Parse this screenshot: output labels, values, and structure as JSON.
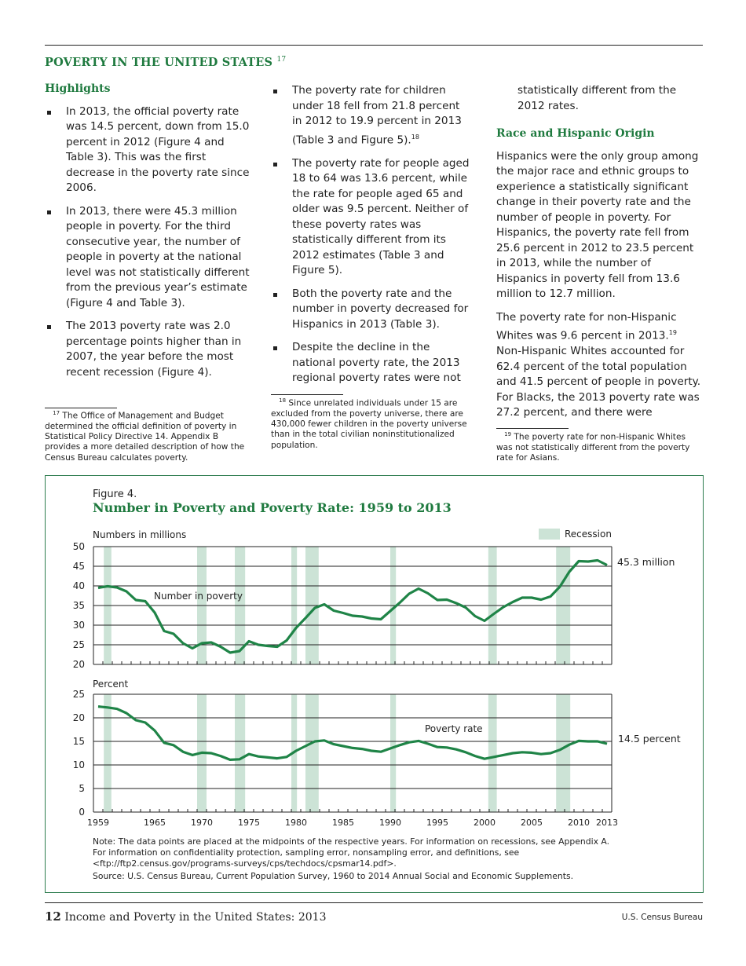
{
  "section": {
    "title": "POVERTY IN THE UNITED STATES",
    "footnote_ref": "17"
  },
  "col1": {
    "heading": "Highlights",
    "bullets": [
      "In 2013, the official poverty rate was 14.5 percent, down from 15.0 percent in 2012 (Figure 4 and Table 3). This was the first decrease in the poverty rate since 2006.",
      "In 2013, there were 45.3 million people in poverty. For the third consecutive year, the number of people in poverty at the national level was not statistically different from the previous year’s estimate (Figure 4 and Table 3).",
      "The 2013 poverty rate was 2.0 percentage points higher than in 2007, the year before the most recent recession (Figure 4)."
    ],
    "footnote_num": "17",
    "footnote": "The Office of Management and Budget determined the official definition of poverty in Statistical Policy Directive 14. Appendix B provides a more detailed description of how the Census Bureau calculates poverty."
  },
  "col2": {
    "bullets": [
      "The poverty rate for children under 18 fell from 21.8 percent in 2012 to 19.9 percent in 2013 (Table 3 and Figure 5).",
      "The poverty rate for people aged 18 to 64 was 13.6 percent, while the rate for people aged 65 and older was 9.5 percent. Neither of these poverty rates was statistically different from its 2012 estimates (Table 3 and Figure 5).",
      "Both the poverty rate and the number in poverty decreased for Hispanics in 2013 (Table 3).",
      "Despite the decline in the national poverty rate, the 2013 regional poverty rates were not"
    ],
    "bullet1_ref": "18",
    "footnote_num": "18",
    "footnote": "Since unrelated individuals under 15 are excluded from the poverty universe, there are 430,000 fewer children in the poverty universe than in the total civilian noninstitutionalized population."
  },
  "col3": {
    "continuation": "statistically different from the 2012 rates.",
    "heading": "Race and Hispanic Origin",
    "para1": "Hispanics were the only group among the major race and ethnic groups to experience a statistically significant change in their poverty rate and the number of people in poverty. For Hispanics, the poverty rate fell from 25.6 percent in 2012 to 23.5 percent in 2013, while the number of Hispanics in poverty fell from 13.6 million to 12.7 million.",
    "para2a": "The poverty rate for non-Hispanic Whites was 9.6 percent in 2013.",
    "para2_ref": "19",
    "para2b": " Non-Hispanic Whites accounted for 62.4 percent of the total population and 41.5 percent of people in poverty. For Blacks, the 2013 poverty rate was 27.2 percent, and there were",
    "footnote_num": "19",
    "footnote": "The poverty rate for non-Hispanic Whites was not statistically different from the poverty rate for Asians."
  },
  "figure": {
    "label": "Figure 4.",
    "title": "Number in Poverty and Poverty Rate: 1959 to 2013",
    "note1": "Note: The data points are placed at the midpoints of the respective years. For information on recessions, see Appendix A.",
    "note2": "For information on confidentiality protection, sampling error, nonsampling error, and definitions, see",
    "note3": "<ftp://ftp2.census.gov/programs-surveys/cps/techdocs/cpsmar14.pdf>.",
    "source": "Source: U.S. Census Bureau, Current Population Survey, 1960 to 2014 Annual Social and Economic Supplements."
  },
  "chart_data": [
    {
      "type": "line",
      "ylabel": "Numbers in millions",
      "ylim": [
        20,
        50
      ],
      "yticks": [
        "20",
        "25",
        "30",
        "35",
        "40",
        "45",
        "50"
      ],
      "xlim": [
        1959,
        2013
      ],
      "grid": true,
      "legend": {
        "label": "Recession",
        "placement": "top-right",
        "color": "#cce3d6"
      },
      "series": [
        {
          "name": "Number in poverty",
          "end_label": "45.3 million",
          "color": "#1f8447",
          "x": [
            1959,
            1960,
            1961,
            1962,
            1963,
            1964,
            1965,
            1966,
            1967,
            1968,
            1969,
            1970,
            1971,
            1972,
            1973,
            1974,
            1975,
            1976,
            1977,
            1978,
            1979,
            1980,
            1981,
            1982,
            1983,
            1984,
            1985,
            1986,
            1987,
            1988,
            1989,
            1990,
            1991,
            1992,
            1993,
            1994,
            1995,
            1996,
            1997,
            1998,
            1999,
            2000,
            2001,
            2002,
            2003,
            2004,
            2005,
            2006,
            2007,
            2008,
            2009,
            2010,
            2011,
            2012,
            2013
          ],
          "values": [
            39.5,
            39.9,
            39.6,
            38.6,
            36.4,
            36.1,
            33.2,
            28.5,
            27.8,
            25.4,
            24.1,
            25.4,
            25.6,
            24.5,
            23.0,
            23.4,
            25.9,
            25.0,
            24.7,
            24.5,
            26.1,
            29.3,
            31.8,
            34.4,
            35.3,
            33.7,
            33.1,
            32.4,
            32.2,
            31.7,
            31.5,
            33.6,
            35.7,
            38.0,
            39.3,
            38.1,
            36.4,
            36.5,
            35.6,
            34.5,
            32.3,
            31.1,
            32.9,
            34.6,
            35.9,
            37.0,
            37.0,
            36.5,
            37.3,
            39.8,
            43.6,
            46.3,
            46.2,
            46.5,
            45.3
          ]
        }
      ]
    },
    {
      "type": "line",
      "ylabel": "Percent",
      "ylim": [
        0,
        25
      ],
      "yticks": [
        "0",
        "5",
        "10",
        "15",
        "20",
        "25"
      ],
      "xlim": [
        1959,
        2013
      ],
      "xticks": [
        "1959",
        "1965",
        "1970",
        "1975",
        "1980",
        "1985",
        "1990",
        "1995",
        "2000",
        "2005",
        "2010",
        "2013"
      ],
      "grid": true,
      "series": [
        {
          "name": "Poverty rate",
          "end_label": "14.5 percent",
          "color": "#1f8447",
          "x": [
            1959,
            1960,
            1961,
            1962,
            1963,
            1964,
            1965,
            1966,
            1967,
            1968,
            1969,
            1970,
            1971,
            1972,
            1973,
            1974,
            1975,
            1976,
            1977,
            1978,
            1979,
            1980,
            1981,
            1982,
            1983,
            1984,
            1985,
            1986,
            1987,
            1988,
            1989,
            1990,
            1991,
            1992,
            1993,
            1994,
            1995,
            1996,
            1997,
            1998,
            1999,
            2000,
            2001,
            2002,
            2003,
            2004,
            2005,
            2006,
            2007,
            2008,
            2009,
            2010,
            2011,
            2012,
            2013
          ],
          "values": [
            22.4,
            22.2,
            21.9,
            21.0,
            19.5,
            19.0,
            17.3,
            14.7,
            14.2,
            12.8,
            12.1,
            12.6,
            12.5,
            11.9,
            11.1,
            11.2,
            12.3,
            11.8,
            11.6,
            11.4,
            11.7,
            13.0,
            14.0,
            15.0,
            15.2,
            14.4,
            14.0,
            13.6,
            13.4,
            13.0,
            12.8,
            13.5,
            14.2,
            14.8,
            15.1,
            14.5,
            13.8,
            13.7,
            13.3,
            12.7,
            11.9,
            11.3,
            11.7,
            12.1,
            12.5,
            12.7,
            12.6,
            12.3,
            12.5,
            13.2,
            14.3,
            15.1,
            15.0,
            15.0,
            14.5
          ]
        }
      ]
    }
  ],
  "recessions": [
    [
      1960.1,
      1960.9
    ],
    [
      1970.0,
      1971.0
    ],
    [
      1974.0,
      1975.1
    ],
    [
      1980.0,
      1980.6
    ],
    [
      1981.5,
      1982.9
    ],
    [
      1990.5,
      1991.1
    ],
    [
      2000.9,
      2001.8
    ],
    [
      2008.1,
      2009.6
    ]
  ],
  "footer": {
    "page": "12",
    "title": "Income and Poverty in the United States: 2013",
    "publisher": "U.S. Census Bureau"
  }
}
